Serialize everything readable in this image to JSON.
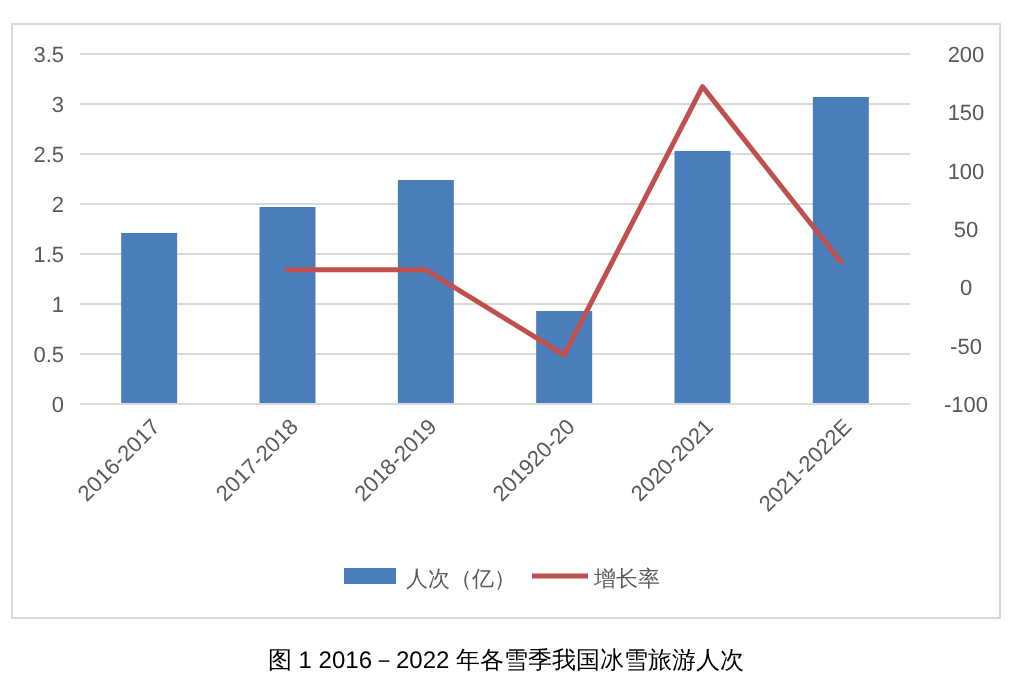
{
  "chart_data": {
    "type": "bar",
    "title": "图 1 2016－2022 年各雪季我国冰雪旅游人次",
    "categories": [
      "2016-2017",
      "2017-2018",
      "2018-2019",
      "201920-20",
      "2020-2021",
      "2021-2022E"
    ],
    "series": [
      {
        "name": "人次（亿）",
        "color": "#4a7ebb",
        "values": [
          1.71,
          1.97,
          2.24,
          0.93,
          2.53,
          3.07
        ]
      },
      {
        "name": "增长率",
        "type": "line",
        "axis": "y2",
        "color": "#c0504d",
        "values": [
          null,
          15,
          15,
          -58,
          172,
          22
        ]
      }
    ],
    "ylim": [
      0,
      3.5
    ],
    "yticks": [
      0,
      0.5,
      1,
      1.5,
      2,
      2.5,
      3,
      3.5
    ],
    "y2lim": [
      -100,
      200
    ],
    "y2ticks": [
      -100,
      -50,
      0,
      50,
      100,
      150,
      200
    ],
    "grid": "y",
    "legend": "bottom",
    "marker": "none",
    "line_style": "solid"
  }
}
